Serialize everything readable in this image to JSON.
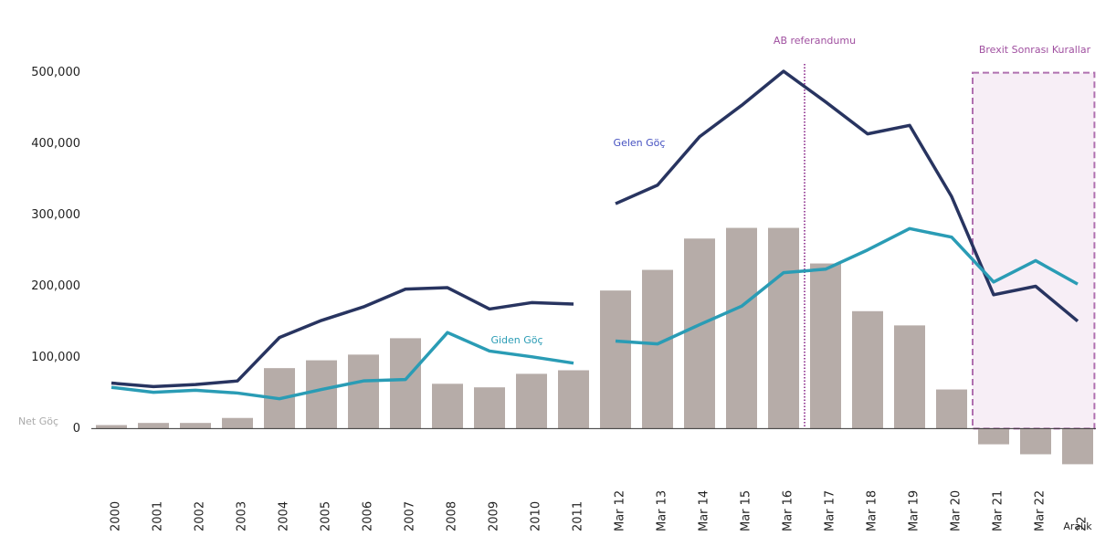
{
  "chart_data": {
    "type": "bar",
    "categories": [
      "2000",
      "2001",
      "2002",
      "2003",
      "2004",
      "2005",
      "2006",
      "2007",
      "2008",
      "2009",
      "2010",
      "2011",
      "Mar 12",
      "Mar 13",
      "Mar 14",
      "Mar 15",
      "Mar 16",
      "Mar 17",
      "Mar 18",
      "Mar 19",
      "Mar 20",
      "Mar 21",
      "Mar 22",
      "22"
    ],
    "bars": {
      "name": "Net Göç",
      "color": "#b6aca8",
      "values": [
        5000,
        8000,
        8000,
        15000,
        85000,
        96000,
        104000,
        127000,
        63000,
        58000,
        77000,
        82000,
        194000,
        223000,
        267000,
        282000,
        282000,
        232000,
        165000,
        145000,
        55000,
        -22000,
        -36000,
        -50000
      ]
    },
    "series": [
      {
        "name": "Gelen Göç",
        "color": "#283460",
        "values": [
          64000,
          59000,
          62000,
          67000,
          128000,
          152000,
          171000,
          196000,
          198000,
          168000,
          177000,
          175000,
          null,
          null,
          null,
          null,
          null,
          null,
          null,
          null,
          null,
          null,
          null,
          null
        ]
      },
      {
        "color": "#283460",
        "values": [
          null,
          null,
          null,
          null,
          null,
          null,
          null,
          null,
          null,
          null,
          null,
          null,
          316000,
          342000,
          410000,
          454000,
          502000,
          459000,
          414000,
          426000,
          326000,
          188000,
          200000,
          151000
        ]
      },
      {
        "name": "Giden Göç",
        "color": "#2a9cb5",
        "values": [
          58000,
          51000,
          54000,
          50000,
          42000,
          55000,
          67000,
          69000,
          135000,
          109000,
          101000,
          92000,
          null,
          null,
          null,
          null,
          null,
          null,
          null,
          null,
          null,
          null,
          null,
          null
        ]
      },
      {
        "color": "#2a9cb5",
        "values": [
          null,
          null,
          null,
          null,
          null,
          null,
          null,
          null,
          null,
          null,
          null,
          null,
          123000,
          119000,
          146000,
          172000,
          219000,
          224000,
          251000,
          281000,
          269000,
          206000,
          236000,
          203000
        ]
      }
    ],
    "ylim": [
      -70000,
      520000
    ],
    "yticks": [
      0,
      {
        "value": 100000,
        "label": "100,000"
      },
      {
        "value": 200000,
        "label": "200,000"
      },
      {
        "value": 300000,
        "label": "300,000"
      },
      {
        "value": 400000,
        "label": "400,000"
      },
      {
        "value": 500000,
        "label": "500,000"
      }
    ],
    "annotations": {
      "referendum": "AB referandumu",
      "brexit": "Brexit Sonrası Kurallar",
      "last_period": "Aralık"
    }
  }
}
